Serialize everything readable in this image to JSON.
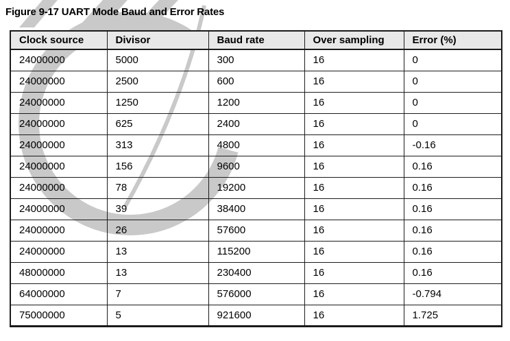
{
  "title": "Figure 9-17 UART Mode Baud and Error Rates",
  "table": {
    "columns": [
      "Clock source",
      "Divisor",
      "Baud rate",
      "Over sampling",
      "Error (%)"
    ],
    "rows": [
      [
        "24000000",
        "5000",
        "300",
        "16",
        "0"
      ],
      [
        "24000000",
        "2500",
        "600",
        "16",
        "0"
      ],
      [
        "24000000",
        "1250",
        "1200",
        "16",
        "0"
      ],
      [
        "24000000",
        "625",
        "2400",
        "16",
        "0"
      ],
      [
        "24000000",
        "313",
        "4800",
        "16",
        "-0.16"
      ],
      [
        "24000000",
        "156",
        "9600",
        "16",
        "0.16"
      ],
      [
        "24000000",
        "78",
        "19200",
        "16",
        "0.16"
      ],
      [
        "24000000",
        "39",
        "38400",
        "16",
        "0.16"
      ],
      [
        "24000000",
        "26",
        "57600",
        "16",
        "0.16"
      ],
      [
        "24000000",
        "13",
        "115200",
        "16",
        "0.16"
      ],
      [
        "48000000",
        "13",
        "230400",
        "16",
        "0.16"
      ],
      [
        "64000000",
        "7",
        "576000",
        "16",
        "-0.794"
      ],
      [
        "75000000",
        "5",
        "921600",
        "16",
        "1.725"
      ]
    ]
  },
  "watermark": {
    "name": "gray-logo-watermark"
  },
  "colors": {
    "header_bg": "#e8e8e8",
    "border": "#1a1a1a",
    "text": "#000000",
    "watermark": "#c9c9c9",
    "page_bg": "#ffffff"
  }
}
